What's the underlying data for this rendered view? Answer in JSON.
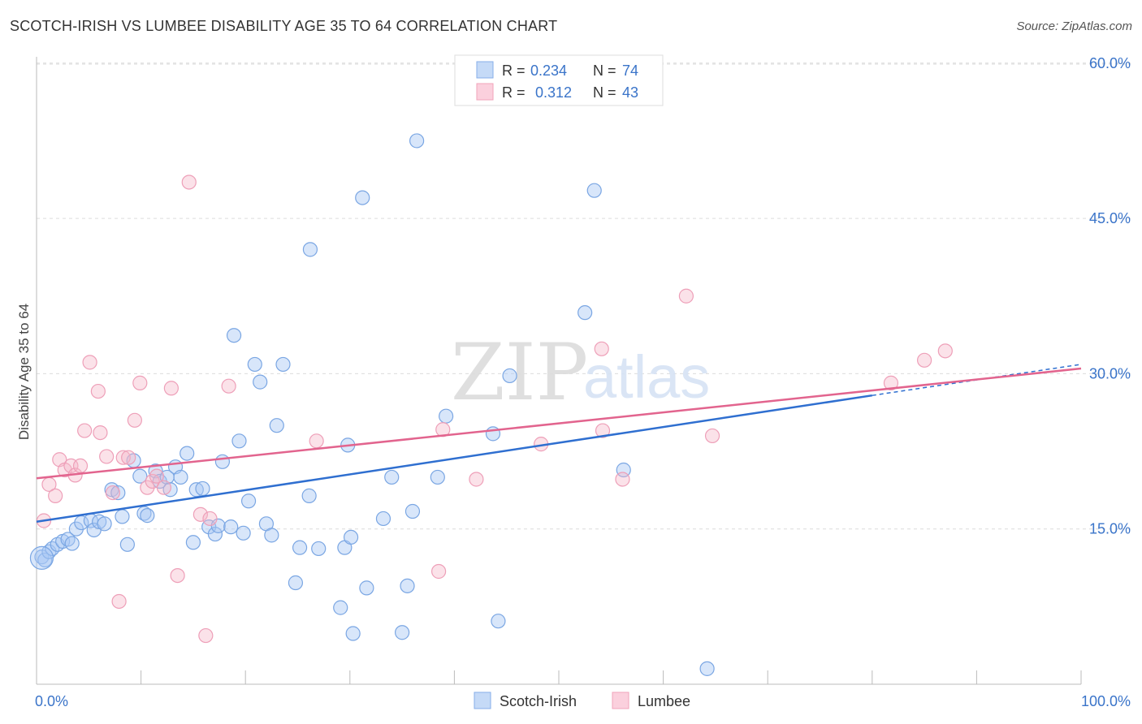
{
  "title": "SCOTCH-IRISH VS LUMBEE DISABILITY AGE 35 TO 64 CORRELATION CHART",
  "source": "Source: ZipAtlas.com",
  "watermark": {
    "zip": "ZIP",
    "atlas": "atlas"
  },
  "legend_top": [
    {
      "r_label": "R =",
      "r_value": "0.234",
      "n_label": "N =",
      "n_value": "74",
      "color": "#a9c8f4"
    },
    {
      "r_label": "R =",
      "r_value": "0.312",
      "n_label": "N =",
      "n_value": "43",
      "color": "#f6b6c9"
    }
  ],
  "legend_bottom": [
    "Scotch-Irish",
    "Lumbee"
  ],
  "chart_data": {
    "type": "scatter",
    "title": "SCOTCH-IRISH VS LUMBEE DISABILITY AGE 35 TO 64 CORRELATION CHART",
    "ylabel": "Disability Age 35 to 64",
    "xlabel": "",
    "xlim": [
      0,
      100
    ],
    "ylim": [
      0,
      62
    ],
    "x_tick_labels": [
      "0.0%",
      "100.0%"
    ],
    "y_ticks": [
      15,
      30,
      45,
      60
    ],
    "y_tick_labels": [
      "15.0%",
      "30.0%",
      "45.0%",
      "60.0%"
    ],
    "grid": true,
    "legend_position": "top-center",
    "series": [
      {
        "name": "Scotch-Irish",
        "color": "#6fa3e6",
        "line_color": "#2f6fd0",
        "trend": {
          "x": [
            0,
            80
          ],
          "y": [
            15.7,
            27.9
          ],
          "dashed_to": [
            100,
            30.9
          ]
        },
        "points": [
          [
            0.5,
            12.3
          ],
          [
            0.8,
            12.0
          ],
          [
            1.2,
            12.8
          ],
          [
            1.5,
            13.1
          ],
          [
            2.0,
            13.5
          ],
          [
            2.5,
            13.8
          ],
          [
            3.0,
            14.0
          ],
          [
            3.4,
            13.6
          ],
          [
            3.8,
            15.0
          ],
          [
            4.3,
            15.6
          ],
          [
            5.2,
            15.8
          ],
          [
            5.5,
            14.9
          ],
          [
            6.0,
            15.7
          ],
          [
            6.5,
            15.5
          ],
          [
            7.2,
            18.8
          ],
          [
            7.8,
            18.5
          ],
          [
            8.2,
            16.2
          ],
          [
            8.7,
            13.5
          ],
          [
            9.3,
            21.6
          ],
          [
            9.9,
            20.1
          ],
          [
            10.3,
            16.5
          ],
          [
            10.6,
            16.3
          ],
          [
            11.4,
            20.6
          ],
          [
            11.8,
            19.6
          ],
          [
            12.5,
            20.0
          ],
          [
            12.8,
            18.8
          ],
          [
            13.3,
            21.0
          ],
          [
            13.8,
            20.0
          ],
          [
            14.4,
            22.3
          ],
          [
            15.0,
            13.7
          ],
          [
            15.3,
            18.8
          ],
          [
            15.9,
            18.9
          ],
          [
            16.5,
            15.2
          ],
          [
            17.1,
            14.5
          ],
          [
            17.4,
            15.3
          ],
          [
            17.8,
            21.5
          ],
          [
            18.6,
            15.2
          ],
          [
            18.9,
            33.7
          ],
          [
            19.4,
            23.5
          ],
          [
            19.8,
            14.6
          ],
          [
            20.3,
            17.7
          ],
          [
            20.9,
            30.9
          ],
          [
            21.4,
            29.2
          ],
          [
            22.0,
            15.5
          ],
          [
            22.5,
            14.4
          ],
          [
            23.0,
            25.0
          ],
          [
            23.6,
            30.9
          ],
          [
            24.8,
            9.8
          ],
          [
            25.2,
            13.2
          ],
          [
            26.1,
            18.2
          ],
          [
            26.2,
            42.0
          ],
          [
            27.0,
            13.1
          ],
          [
            29.1,
            7.4
          ],
          [
            29.5,
            13.2
          ],
          [
            29.8,
            23.1
          ],
          [
            30.1,
            14.2
          ],
          [
            30.3,
            4.9
          ],
          [
            31.2,
            47.0
          ],
          [
            31.6,
            9.3
          ],
          [
            33.2,
            16.0
          ],
          [
            34.0,
            20.0
          ],
          [
            35.0,
            5.0
          ],
          [
            35.5,
            9.5
          ],
          [
            36.0,
            16.7
          ],
          [
            36.4,
            52.5
          ],
          [
            38.4,
            20.0
          ],
          [
            39.2,
            25.9
          ],
          [
            43.7,
            24.2
          ],
          [
            44.2,
            6.1
          ],
          [
            45.3,
            29.8
          ],
          [
            52.5,
            35.9
          ],
          [
            53.4,
            47.7
          ],
          [
            56.2,
            20.7
          ],
          [
            64.2,
            1.5
          ]
        ]
      },
      {
        "name": "Lumbee",
        "color": "#f49ab6",
        "line_color": "#e2648e",
        "trend": {
          "x": [
            0,
            100
          ],
          "y": [
            19.9,
            30.5
          ]
        },
        "points": [
          [
            0.7,
            15.8
          ],
          [
            1.2,
            19.3
          ],
          [
            1.8,
            18.2
          ],
          [
            2.2,
            21.7
          ],
          [
            2.7,
            20.7
          ],
          [
            3.3,
            21.1
          ],
          [
            3.7,
            20.2
          ],
          [
            4.2,
            21.1
          ],
          [
            4.6,
            24.5
          ],
          [
            5.1,
            31.1
          ],
          [
            5.9,
            28.3
          ],
          [
            6.1,
            24.3
          ],
          [
            6.7,
            22.0
          ],
          [
            7.3,
            18.5
          ],
          [
            7.9,
            8.0
          ],
          [
            8.3,
            21.9
          ],
          [
            8.8,
            21.9
          ],
          [
            9.4,
            25.5
          ],
          [
            9.9,
            29.1
          ],
          [
            10.6,
            19.0
          ],
          [
            11.1,
            19.6
          ],
          [
            11.5,
            20.1
          ],
          [
            12.2,
            19.0
          ],
          [
            12.9,
            28.6
          ],
          [
            13.5,
            10.5
          ],
          [
            14.6,
            48.5
          ],
          [
            15.7,
            16.4
          ],
          [
            16.2,
            4.7
          ],
          [
            16.6,
            16.0
          ],
          [
            18.4,
            28.8
          ],
          [
            26.8,
            23.5
          ],
          [
            38.5,
            10.9
          ],
          [
            38.9,
            24.6
          ],
          [
            42.1,
            19.8
          ],
          [
            48.3,
            23.2
          ],
          [
            54.1,
            32.4
          ],
          [
            54.2,
            24.5
          ],
          [
            56.1,
            19.8
          ],
          [
            62.2,
            37.5
          ],
          [
            64.7,
            24.0
          ],
          [
            81.8,
            29.1
          ],
          [
            85.0,
            31.3
          ],
          [
            87.0,
            32.2
          ]
        ]
      }
    ]
  }
}
